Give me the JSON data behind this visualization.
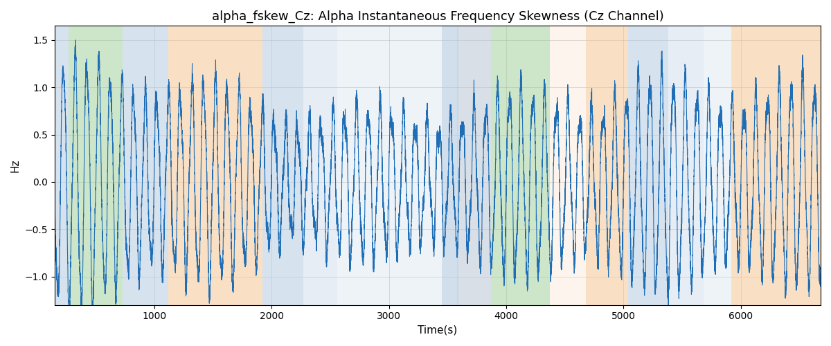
{
  "title": "alpha_fskew_Cz: Alpha Instantaneous Frequency Skewness (Cz Channel)",
  "xlabel": "Time(s)",
  "ylabel": "Hz",
  "ylim": [
    -1.3,
    1.65
  ],
  "xlim": [
    150,
    6680
  ],
  "line_color": "#1f6eb5",
  "line_width": 0.8,
  "bg_bands": [
    {
      "xstart": 150,
      "xend": 270,
      "color": "#aec6df",
      "alpha": 0.5
    },
    {
      "xstart": 270,
      "xend": 730,
      "color": "#90c98a",
      "alpha": 0.45
    },
    {
      "xstart": 730,
      "xend": 1120,
      "color": "#aec6df",
      "alpha": 0.5
    },
    {
      "xstart": 1120,
      "xend": 1920,
      "color": "#f4c28c",
      "alpha": 0.5
    },
    {
      "xstart": 1920,
      "xend": 2270,
      "color": "#aec6df",
      "alpha": 0.5
    },
    {
      "xstart": 2270,
      "xend": 2560,
      "color": "#aec6df",
      "alpha": 0.3
    },
    {
      "xstart": 2560,
      "xend": 3580,
      "color": "#aec6df",
      "alpha": 0.2
    },
    {
      "xstart": 3450,
      "xend": 3590,
      "color": "#aec6df",
      "alpha": 0.45
    },
    {
      "xstart": 3590,
      "xend": 3870,
      "color": "#f4c28c",
      "alpha": 0.15
    },
    {
      "xstart": 3580,
      "xend": 3870,
      "color": "#aec6df",
      "alpha": 0.45
    },
    {
      "xstart": 3870,
      "xend": 4050,
      "color": "#90c98a",
      "alpha": 0.45
    },
    {
      "xstart": 4050,
      "xend": 4370,
      "color": "#90c98a",
      "alpha": 0.45
    },
    {
      "xstart": 4370,
      "xend": 4680,
      "color": "#f4c28c",
      "alpha": 0.15
    },
    {
      "xstart": 4680,
      "xend": 5040,
      "color": "#f4c28c",
      "alpha": 0.5
    },
    {
      "xstart": 5040,
      "xend": 5380,
      "color": "#aec6df",
      "alpha": 0.5
    },
    {
      "xstart": 5380,
      "xend": 5680,
      "color": "#aec6df",
      "alpha": 0.3
    },
    {
      "xstart": 5680,
      "xend": 5920,
      "color": "#aec6df",
      "alpha": 0.2
    },
    {
      "xstart": 5920,
      "xend": 6680,
      "color": "#f4c28c",
      "alpha": 0.5
    }
  ],
  "figsize": [
    12,
    5
  ],
  "dpi": 100,
  "title_fontsize": 13,
  "axis_label_fontsize": 11,
  "yticks": [
    -1.0,
    -0.5,
    0.0,
    0.5,
    1.0,
    1.5
  ],
  "xticks": [
    1000,
    2000,
    3000,
    4000,
    5000,
    6000
  ],
  "grid_color": "#b0b0b0",
  "grid_alpha": 0.6,
  "grid_linewidth": 0.5,
  "seed": 42
}
